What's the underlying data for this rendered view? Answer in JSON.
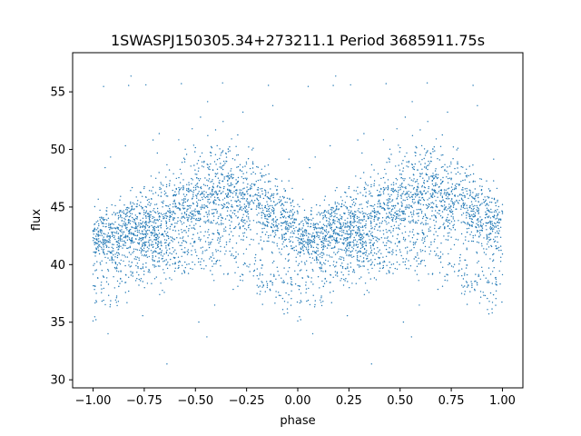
{
  "chart_data": {
    "type": "scatter",
    "title": "1SWASPJ150305.34+273211.1 Period 3685911.75s",
    "xlabel": "phase",
    "ylabel": "flux",
    "xlim": [
      -1.1,
      1.1
    ],
    "ylim": [
      29.3,
      58.4
    ],
    "xticks": [
      -1.0,
      -0.75,
      -0.5,
      -0.25,
      0.0,
      0.25,
      0.5,
      0.75,
      1.0
    ],
    "xtick_labels": [
      "−1.00",
      "−0.75",
      "−0.50",
      "−0.25",
      "0.00",
      "0.25",
      "0.50",
      "0.75",
      "1.00"
    ],
    "yticks": [
      30,
      35,
      40,
      45,
      50,
      55
    ],
    "ytick_labels": [
      "30",
      "35",
      "40",
      "45",
      "50",
      "55"
    ],
    "grid": false,
    "series": [
      {
        "color": "#1f77b4",
        "marker": "dot",
        "profile": {
          "phase": [
            0.0,
            0.1,
            0.2,
            0.3,
            0.4,
            0.5,
            0.6,
            0.7,
            0.8,
            0.9,
            1.0
          ],
          "mean_flux": [
            42.0,
            42.5,
            43.0,
            43.5,
            44.2,
            45.2,
            46.0,
            46.2,
            45.2,
            44.0,
            43.0
          ],
          "spread": [
            1.5,
            1.6,
            1.8,
            2.0,
            2.5,
            2.8,
            2.8,
            2.5,
            2.2,
            2.0,
            1.8
          ],
          "low_branch_flux": [
            37.5,
            38.5,
            40.0,
            40.5,
            40.5,
            41.0,
            41.0,
            40.5,
            39.0,
            38.0,
            38.0
          ],
          "outlier_range": [
            30.5,
            57.5
          ]
        }
      }
    ]
  }
}
